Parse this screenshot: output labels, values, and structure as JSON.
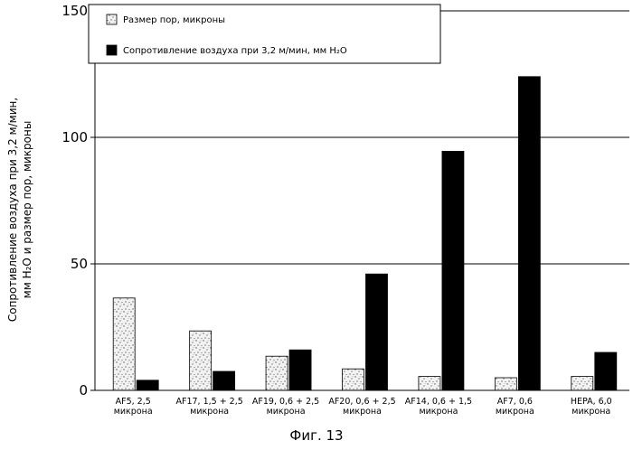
{
  "chart_data": {
    "type": "bar",
    "caption": "Фиг. 13",
    "ylabel_line1": "Сопротивление воздуха при 3,2 м/мин,",
    "ylabel_line2": "мм H₂O и размер пор, микроны",
    "ylim": [
      0,
      150
    ],
    "yticks": [
      0,
      50,
      100,
      150
    ],
    "grid": true,
    "legend_position": "top-left",
    "categories": [
      [
        "AF5, 2,5",
        "микрона"
      ],
      [
        "AF17, 1,5 + 2,5",
        "микрона"
      ],
      [
        "AF19, 0,6 + 2,5",
        "микрона"
      ],
      [
        "AF20, 0,6 + 2,5",
        "микрона"
      ],
      [
        "AF14, 0,6 + 1,5",
        "микрона"
      ],
      [
        "AF7, 0,6",
        "микрона"
      ],
      [
        "HEPA, 6,0",
        "микрона"
      ]
    ],
    "series": [
      {
        "name": "Размер пор, микроны",
        "color": "#d9d9d9",
        "pattern": "speckled",
        "values": [
          36.5,
          23.5,
          13.5,
          8.5,
          5.5,
          5.0,
          5.5
        ]
      },
      {
        "name": "Сопротивление воздуха при 3,2 м/мин, мм H₂O",
        "color": "#000000",
        "pattern": "solid",
        "values": [
          4.0,
          7.5,
          16.0,
          46.0,
          94.5,
          124.0,
          15.0
        ]
      }
    ]
  }
}
